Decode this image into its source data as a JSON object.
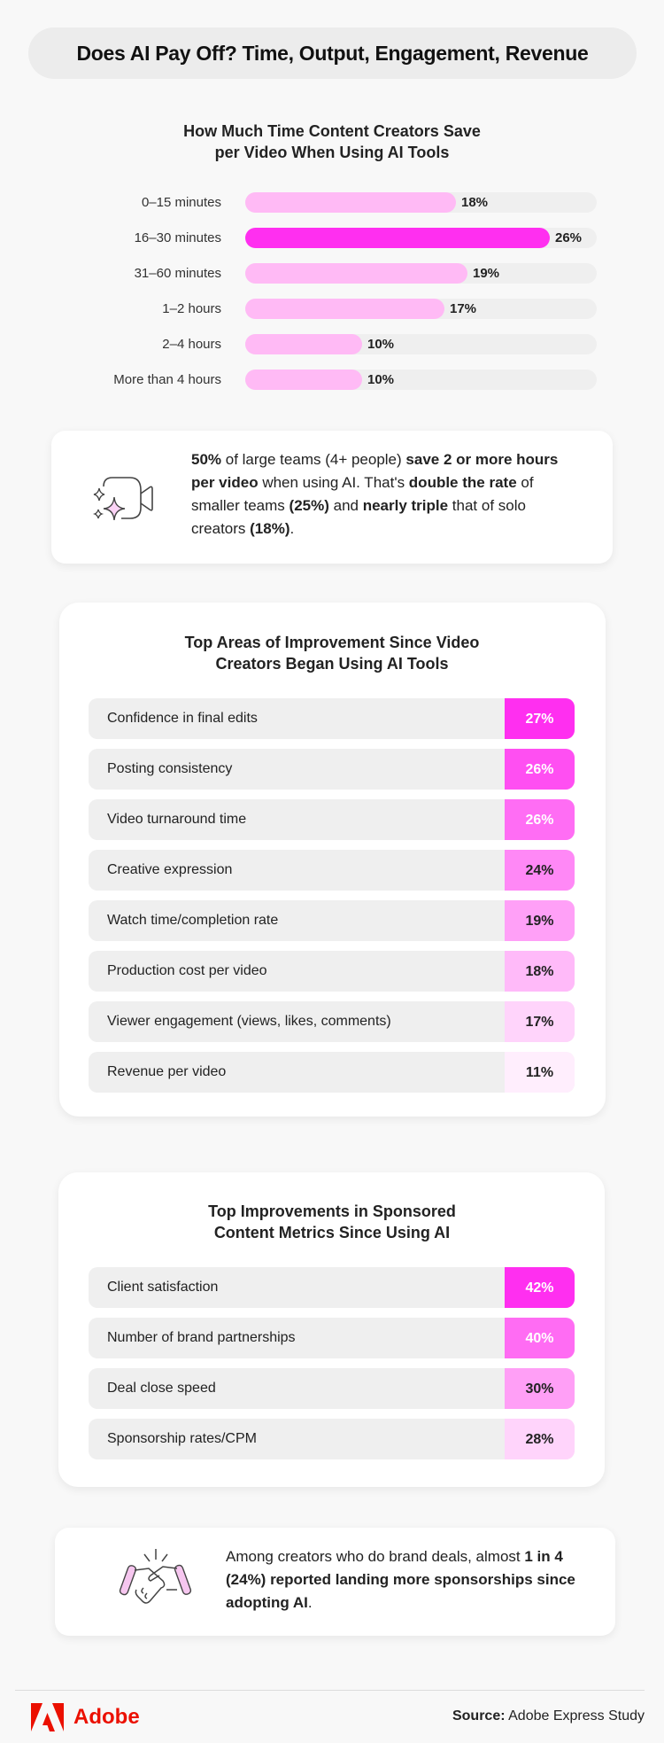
{
  "header": {
    "title": "Does AI Pay Off? Time, Output, Engagement, Revenue"
  },
  "colors": {
    "background": "#f8f8f8",
    "accent": "#ff2ff0",
    "light_bar": "#ffbaf5",
    "track": "#efefef",
    "adobe_red": "#eb1000"
  },
  "chart_data": [
    {
      "type": "bar",
      "orientation": "horizontal",
      "title_lines": [
        "How Much Time Content Creators Save",
        "per Video When Using AI Tools"
      ],
      "categories": [
        "0–15 minutes",
        "16–30 minutes",
        "31–60 minutes",
        "1–2 hours",
        "2–4 hours",
        "More than 4 hours"
      ],
      "values": [
        18,
        26,
        19,
        17,
        10,
        10
      ],
      "labels": [
        "18%",
        "26%",
        "19%",
        "17%",
        "10%",
        "10%"
      ],
      "highlight": "16–30 minutes",
      "unit": "%",
      "xlim": [
        0,
        30
      ],
      "grid": false
    },
    {
      "type": "table",
      "title_lines": [
        "Top Areas of Improvement Since Video",
        "Creators Began Using AI Tools"
      ],
      "categories": [
        "Confidence in final edits",
        "Posting consistency",
        "Video turnaround time",
        "Creative expression",
        "Watch time/completion rate",
        "Production cost per video",
        "Viewer engagement (views, likes, comments)",
        "Revenue per video"
      ],
      "values": [
        27,
        26,
        26,
        24,
        19,
        18,
        17,
        11
      ],
      "labels": [
        "27%",
        "26%",
        "26%",
        "24%",
        "19%",
        "18%",
        "17%",
        "11%"
      ],
      "cell_colors": [
        "#ff2ff0",
        "#ff4ff2",
        "#ff6df4",
        "#ff88f6",
        "#ffa0f7",
        "#ffbaf9",
        "#ffd4fb",
        "#ffeefd"
      ],
      "text_colors": [
        "#ffffff",
        "#ffffff",
        "#ffffff",
        "#222222",
        "#222222",
        "#222222",
        "#222222",
        "#222222"
      ]
    },
    {
      "type": "table",
      "title_lines": [
        "Top Improvements in Sponsored",
        "Content Metrics Since Using AI"
      ],
      "categories": [
        "Client satisfaction",
        "Number of brand partnerships",
        "Deal close speed",
        "Sponsorship rates/CPM"
      ],
      "values": [
        42,
        40,
        30,
        28
      ],
      "labels": [
        "42%",
        "40%",
        "30%",
        "28%"
      ],
      "cell_colors": [
        "#ff2ff0",
        "#ff6cf3",
        "#ff9ff6",
        "#ffd4fb"
      ],
      "text_colors": [
        "#ffffff",
        "#ffffff",
        "#222222",
        "#222222"
      ]
    }
  ],
  "callout1": {
    "icon": "video-camera-sparkle-icon",
    "segments": [
      {
        "t": "50%",
        "b": true
      },
      {
        "t": " of large teams (4+ people) ",
        "b": false
      },
      {
        "t": "save 2 or more hours per video",
        "b": true
      },
      {
        "t": " when using AI. That's ",
        "b": false
      },
      {
        "t": "double the rate",
        "b": true
      },
      {
        "t": " of smaller teams ",
        "b": false
      },
      {
        "t": "(25%)",
        "b": true
      },
      {
        "t": " and ",
        "b": false
      },
      {
        "t": "nearly triple",
        "b": true
      },
      {
        "t": " that of solo creators ",
        "b": false
      },
      {
        "t": "(18%)",
        "b": true
      },
      {
        "t": ".",
        "b": false
      }
    ]
  },
  "callout2": {
    "icon": "handshake-icon",
    "segments": [
      {
        "t": "Among creators who do brand deals, almost ",
        "b": false
      },
      {
        "t": "1 in 4 (24%) reported landing more sponsorships since adopting AI",
        "b": true
      },
      {
        "t": ".",
        "b": false
      }
    ]
  },
  "footer": {
    "brand": "Adobe",
    "source_label": "Source:",
    "source_value": " Adobe Express Study"
  }
}
